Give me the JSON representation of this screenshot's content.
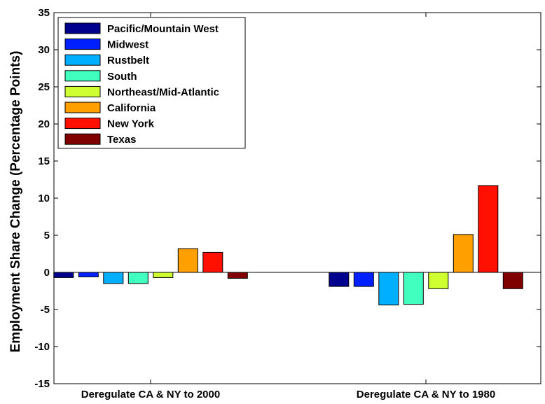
{
  "chart_data": {
    "type": "bar",
    "ylabel": "Employment Share Change (Percentage Points)",
    "ylim": [
      -15,
      35
    ],
    "yticks": [
      -15,
      -10,
      -5,
      0,
      5,
      10,
      15,
      20,
      25,
      30,
      35
    ],
    "ytick_labels": [
      "-15",
      "-10",
      "-5",
      "0",
      "5",
      "10",
      "15",
      "20",
      "25",
      "30",
      "35"
    ],
    "categories": [
      "Deregulate CA & NY to 2000",
      "Deregulate CA & NY to 1980"
    ],
    "grid": false,
    "legend_position": "top-left",
    "series": [
      {
        "name": "Pacific/Mountain West",
        "color": "#00008f",
        "values": [
          -0.7,
          -1.9
        ]
      },
      {
        "name": "Midwest",
        "color": "#0020ff",
        "values": [
          -0.6,
          -1.9
        ]
      },
      {
        "name": "Rustbelt",
        "color": "#00afff",
        "values": [
          -1.5,
          -4.4
        ]
      },
      {
        "name": "South",
        "color": "#40ffbf",
        "values": [
          -1.5,
          -4.3
        ]
      },
      {
        "name": "Northeast/Mid-Atlantic",
        "color": "#cfff30",
        "values": [
          -0.7,
          -2.2
        ]
      },
      {
        "name": "California",
        "color": "#ff9f00",
        "values": [
          3.2,
          5.1
        ]
      },
      {
        "name": "New York",
        "color": "#ff1000",
        "values": [
          2.7,
          11.7
        ]
      },
      {
        "name": "Texas",
        "color": "#800000",
        "values": [
          -0.8,
          -2.2
        ]
      }
    ]
  }
}
